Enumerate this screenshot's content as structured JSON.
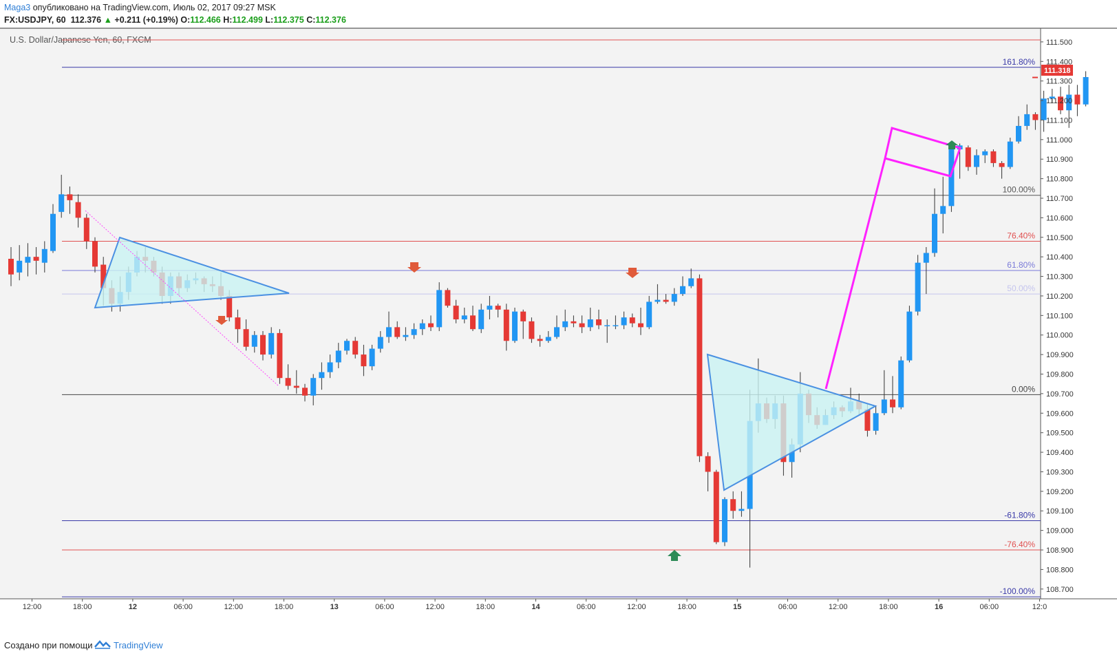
{
  "header": {
    "username": "Maga3",
    "published_text": "опубликовано на TradingView.com, Июль 02, 2017 09:27 MSK",
    "symbol": "FX:USDJPY, 60",
    "last": "112.376",
    "change": "+0.211 (+0.19%)",
    "o_label": "O:",
    "o_value": "112.466",
    "h_label": "H:",
    "h_value": "112.499",
    "l_label": "L:",
    "l_value": "112.375",
    "c_label": "C:",
    "c_value": "112.376"
  },
  "footer": {
    "created_with": "Создано при помощи",
    "brand": "TradingView"
  },
  "colors": {
    "up": "#2196f3",
    "down": "#e53935",
    "background": "#f3f3f3",
    "pattern": "#4a90e2",
    "pattern_fill": "#c9f3f3",
    "magenta": "#ff22ff"
  },
  "chart_data": {
    "type": "candlestick",
    "title": "U.S. Dollar/Japanese Yen, 60, FXCM",
    "current_price_label": "111.318",
    "y_range": [
      108.65,
      111.57
    ],
    "y_ticks": [
      "111.500",
      "111.400",
      "111.300",
      "111.200",
      "111.100",
      "111.000",
      "110.900",
      "110.800",
      "110.700",
      "110.600",
      "110.500",
      "110.400",
      "110.300",
      "110.200",
      "110.100",
      "110.000",
      "109.900",
      "109.800",
      "109.700",
      "109.600",
      "109.500",
      "109.400",
      "109.300",
      "109.200",
      "109.100",
      "109.000",
      "108.900",
      "108.800",
      "108.700"
    ],
    "x_ticks": [
      {
        "label": "12:00",
        "bar": 2.5
      },
      {
        "label": "18:00",
        "bar": 8.5
      },
      {
        "label": "12",
        "bar": 14.5
      },
      {
        "label": "06:00",
        "bar": 20.5
      },
      {
        "label": "12:00",
        "bar": 26.5
      },
      {
        "label": "18:00",
        "bar": 32.5
      },
      {
        "label": "13",
        "bar": 38.5
      },
      {
        "label": "06:00",
        "bar": 44.5
      },
      {
        "label": "12:00",
        "bar": 50.5
      },
      {
        "label": "18:00",
        "bar": 56.5
      },
      {
        "label": "14",
        "bar": 62.5
      },
      {
        "label": "06:00",
        "bar": 68.5
      },
      {
        "label": "12:00",
        "bar": 74.5
      },
      {
        "label": "18:00",
        "bar": 80.5
      },
      {
        "label": "15",
        "bar": 86.5
      },
      {
        "label": "06:00",
        "bar": 92.5
      },
      {
        "label": "12:00",
        "bar": 98.5
      },
      {
        "label": "18:00",
        "bar": 104.5
      },
      {
        "label": "16",
        "bar": 110.5
      },
      {
        "label": "06:00",
        "bar": 116.5
      },
      {
        "label": "12:0",
        "bar": 122.5
      }
    ],
    "fib_levels": [
      {
        "label": "161.80%",
        "price": 111.37,
        "color": "#3a3aa8"
      },
      {
        "label": "100.00%",
        "price": 110.715,
        "color": "#555555"
      },
      {
        "label": "76.40%",
        "price": 110.48,
        "color": "#e05050"
      },
      {
        "label": "61.80%",
        "price": 110.33,
        "color": "#7a7ad8"
      },
      {
        "label": "50.00%",
        "price": 110.21,
        "color": "#c4c4ee"
      },
      {
        "label": "0.00%",
        "price": 109.695,
        "color": "#444444"
      },
      {
        "label": "-61.80%",
        "price": 109.05,
        "color": "#3a3aa8"
      },
      {
        "label": "-76.40%",
        "price": 108.9,
        "color": "#e05050"
      },
      {
        "label": "-100.00%",
        "price": 108.66,
        "color": "#3a3aa8"
      }
    ],
    "top_red_line": 111.51,
    "candles": [
      [
        110.39,
        110.31,
        110.45,
        110.25
      ],
      [
        110.32,
        110.38,
        110.46,
        110.28
      ],
      [
        110.37,
        110.4,
        110.47,
        110.3
      ],
      [
        110.4,
        110.38,
        110.45,
        110.31
      ],
      [
        110.37,
        110.44,
        110.48,
        110.32
      ],
      [
        110.43,
        110.62,
        110.67,
        110.42
      ],
      [
        110.63,
        110.72,
        110.82,
        110.6
      ],
      [
        110.72,
        110.69,
        110.76,
        110.62
      ],
      [
        110.68,
        110.6,
        110.72,
        110.55
      ],
      [
        110.6,
        110.48,
        110.62,
        110.44
      ],
      [
        110.48,
        110.35,
        110.5,
        110.32
      ],
      [
        110.36,
        110.24,
        110.4,
        110.15
      ],
      [
        110.24,
        110.16,
        110.28,
        110.12
      ],
      [
        110.16,
        110.22,
        110.3,
        110.12
      ],
      [
        110.22,
        110.32,
        110.35,
        110.18
      ],
      [
        110.32,
        110.4,
        110.43,
        110.3
      ],
      [
        110.4,
        110.38,
        110.45,
        110.32
      ],
      [
        110.38,
        110.32,
        110.4,
        110.3
      ],
      [
        110.32,
        110.2,
        110.35,
        110.16
      ],
      [
        110.2,
        110.3,
        110.32,
        110.16
      ],
      [
        110.3,
        110.24,
        110.32,
        110.2
      ],
      [
        110.24,
        110.28,
        110.31,
        110.22
      ],
      [
        110.28,
        110.29,
        110.32,
        110.26
      ],
      [
        110.29,
        110.26,
        110.3,
        110.22
      ],
      [
        110.26,
        110.25,
        110.3,
        110.22
      ],
      [
        110.25,
        110.2,
        110.32,
        110.18
      ],
      [
        110.2,
        110.09,
        110.23,
        110.07
      ],
      [
        110.09,
        110.03,
        110.13,
        109.96
      ],
      [
        110.03,
        109.94,
        110.08,
        109.92
      ],
      [
        109.94,
        110.0,
        110.02,
        109.91
      ],
      [
        110.0,
        109.9,
        110.02,
        109.87
      ],
      [
        109.9,
        110.01,
        110.04,
        109.88
      ],
      [
        110.01,
        109.78,
        110.03,
        109.75
      ],
      [
        109.78,
        109.74,
        109.85,
        109.72
      ],
      [
        109.74,
        109.73,
        109.82,
        109.7
      ],
      [
        109.73,
        109.69,
        109.75,
        109.66
      ],
      [
        109.69,
        109.78,
        109.8,
        109.64
      ],
      [
        109.78,
        109.81,
        109.86,
        109.72
      ],
      [
        109.81,
        109.86,
        109.9,
        109.78
      ],
      [
        109.86,
        109.92,
        109.96,
        109.83
      ],
      [
        109.92,
        109.97,
        109.98,
        109.9
      ],
      [
        109.97,
        109.9,
        109.99,
        109.88
      ],
      [
        109.9,
        109.84,
        109.95,
        109.79
      ],
      [
        109.84,
        109.93,
        109.95,
        109.82
      ],
      [
        109.93,
        109.99,
        110.02,
        109.91
      ],
      [
        109.99,
        110.04,
        110.12,
        109.96
      ],
      [
        110.04,
        109.99,
        110.07,
        109.98
      ],
      [
        109.99,
        110.0,
        110.04,
        109.97
      ],
      [
        110.0,
        110.03,
        110.06,
        109.98
      ],
      [
        110.03,
        110.06,
        110.08,
        110.0
      ],
      [
        110.06,
        110.04,
        110.1,
        110.02
      ],
      [
        110.04,
        110.23,
        110.27,
        110.02
      ],
      [
        110.23,
        110.15,
        110.24,
        110.14
      ],
      [
        110.15,
        110.08,
        110.18,
        110.06
      ],
      [
        110.08,
        110.1,
        110.14,
        110.06
      ],
      [
        110.1,
        110.03,
        110.15,
        110.02
      ],
      [
        110.03,
        110.13,
        110.16,
        110.01
      ],
      [
        110.13,
        110.15,
        110.2,
        110.08
      ],
      [
        110.15,
        110.13,
        110.16,
        110.09
      ],
      [
        110.13,
        109.97,
        110.16,
        109.92
      ],
      [
        109.97,
        110.12,
        110.14,
        109.96
      ],
      [
        110.12,
        110.07,
        110.13,
        109.98
      ],
      [
        110.07,
        109.98,
        110.09,
        109.96
      ],
      [
        109.98,
        109.97,
        110.0,
        109.94
      ],
      [
        109.97,
        109.99,
        110.02,
        109.96
      ],
      [
        109.99,
        110.04,
        110.1,
        109.98
      ],
      [
        110.04,
        110.07,
        110.13,
        110.02
      ],
      [
        110.07,
        110.06,
        110.1,
        110.04
      ],
      [
        110.06,
        110.04,
        110.1,
        110.01
      ],
      [
        110.04,
        110.08,
        110.14,
        110.02
      ],
      [
        110.08,
        110.05,
        110.13,
        110.03
      ],
      [
        110.05,
        110.05,
        110.08,
        109.96
      ],
      [
        110.05,
        110.05,
        110.1,
        110.03
      ],
      [
        110.05,
        110.09,
        110.12,
        110.03
      ],
      [
        110.09,
        110.06,
        110.11,
        110.04
      ],
      [
        110.06,
        110.04,
        110.14,
        110.0
      ],
      [
        110.04,
        110.17,
        110.2,
        110.03
      ],
      [
        110.17,
        110.18,
        110.26,
        110.16
      ],
      [
        110.18,
        110.17,
        110.21,
        110.16
      ],
      [
        110.17,
        110.21,
        110.24,
        110.15
      ],
      [
        110.21,
        110.25,
        110.3,
        110.2
      ],
      [
        110.25,
        110.29,
        110.34,
        110.24
      ],
      [
        110.29,
        109.38,
        110.31,
        109.35
      ],
      [
        109.38,
        109.3,
        109.4,
        109.2
      ],
      [
        109.3,
        108.94,
        109.31,
        108.93
      ],
      [
        108.94,
        109.16,
        109.17,
        108.92
      ],
      [
        109.16,
        109.1,
        109.2,
        109.06
      ],
      [
        109.1,
        109.11,
        109.2,
        109.07
      ],
      [
        109.11,
        109.56,
        109.72,
        108.81
      ],
      [
        109.56,
        109.65,
        109.88,
        109.5
      ],
      [
        109.65,
        109.57,
        109.68,
        109.55
      ],
      [
        109.57,
        109.65,
        109.69,
        109.52
      ],
      [
        109.65,
        109.35,
        109.69,
        109.28
      ],
      [
        109.35,
        109.44,
        109.47,
        109.27
      ],
      [
        109.44,
        109.7,
        109.81,
        109.4
      ],
      [
        109.7,
        109.59,
        109.72,
        109.55
      ],
      [
        109.59,
        109.54,
        109.63,
        109.52
      ],
      [
        109.54,
        109.59,
        109.62,
        109.54
      ],
      [
        109.59,
        109.63,
        109.66,
        109.57
      ],
      [
        109.63,
        109.61,
        109.64,
        109.58
      ],
      [
        109.61,
        109.66,
        109.73,
        109.6
      ],
      [
        109.66,
        109.62,
        109.7,
        109.59
      ],
      [
        109.62,
        109.51,
        109.65,
        109.48
      ],
      [
        109.51,
        109.6,
        109.64,
        109.49
      ],
      [
        109.6,
        109.67,
        109.82,
        109.59
      ],
      [
        109.67,
        109.63,
        109.79,
        109.6
      ],
      [
        109.63,
        109.87,
        109.89,
        109.62
      ],
      [
        109.87,
        110.12,
        110.15,
        109.86
      ],
      [
        110.12,
        110.37,
        110.41,
        110.1
      ],
      [
        110.37,
        110.42,
        110.45,
        110.21
      ],
      [
        110.42,
        110.62,
        110.75,
        110.4
      ],
      [
        110.62,
        110.66,
        110.81,
        110.52
      ],
      [
        110.66,
        110.95,
        110.97,
        110.63
      ],
      [
        110.95,
        110.97,
        110.98,
        110.8
      ],
      [
        110.96,
        110.86,
        110.97,
        110.84
      ],
      [
        110.86,
        110.92,
        110.95,
        110.82
      ],
      [
        110.92,
        110.94,
        110.95,
        110.88
      ],
      [
        110.94,
        110.88,
        110.95,
        110.86
      ],
      [
        110.88,
        110.86,
        110.89,
        110.8
      ],
      [
        110.86,
        110.99,
        111.01,
        110.85
      ],
      [
        110.99,
        111.07,
        111.12,
        110.98
      ],
      [
        111.07,
        111.13,
        111.18,
        111.05
      ],
      [
        111.13,
        111.1,
        111.14,
        111.05
      ],
      [
        111.1,
        111.21,
        111.25,
        111.04
      ],
      [
        111.21,
        111.22,
        111.26,
        111.19
      ],
      [
        111.22,
        111.15,
        111.27,
        111.13
      ],
      [
        111.15,
        111.23,
        111.28,
        111.06
      ],
      [
        111.23,
        111.18,
        111.28,
        111.12
      ],
      [
        111.18,
        111.32,
        111.35,
        111.17
      ]
    ]
  }
}
